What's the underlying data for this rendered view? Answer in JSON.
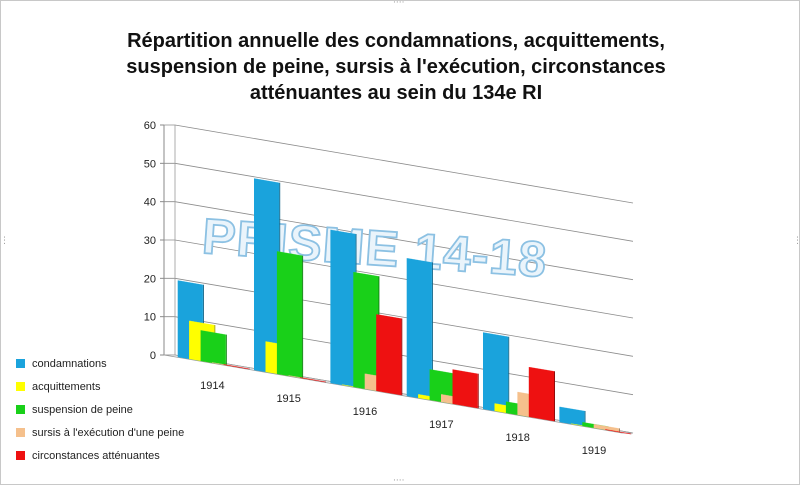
{
  "chart_data": {
    "type": "bar",
    "title_lines": [
      "Répartition annuelle des condamnations, acquittements,",
      "suspension de peine, sursis à l'exécution,  circonstances",
      "atténuantes au sein du 134e RI"
    ],
    "categories": [
      "1914",
      "1915",
      "1916",
      "1917",
      "1918",
      "1919"
    ],
    "yticks": [
      "0",
      "10",
      "20",
      "30",
      "40",
      "50",
      "60"
    ],
    "ylim": [
      0,
      60
    ],
    "grid": true,
    "legend_position": "bottom-left",
    "watermark": "PRISME 14-18",
    "series": [
      {
        "name": "condamnations",
        "color": "#1aa3dc",
        "values": [
          20,
          50,
          40,
          36,
          20,
          4
        ]
      },
      {
        "name": "acquittements",
        "color": "#ffff00",
        "values": [
          10,
          8,
          0,
          1,
          2,
          0
        ]
      },
      {
        "name": "suspension de peine",
        "color": "#19d019",
        "values": [
          8,
          32,
          30,
          8,
          3,
          1
        ]
      },
      {
        "name": "sursis à l'exécution d'une peine",
        "color": "#f5c08c",
        "values": [
          0,
          0,
          4,
          2,
          6,
          1
        ]
      },
      {
        "name": "circonstances atténuantes",
        "color": "#ee1111",
        "values": [
          0,
          0,
          20,
          9,
          13,
          0
        ]
      }
    ]
  }
}
